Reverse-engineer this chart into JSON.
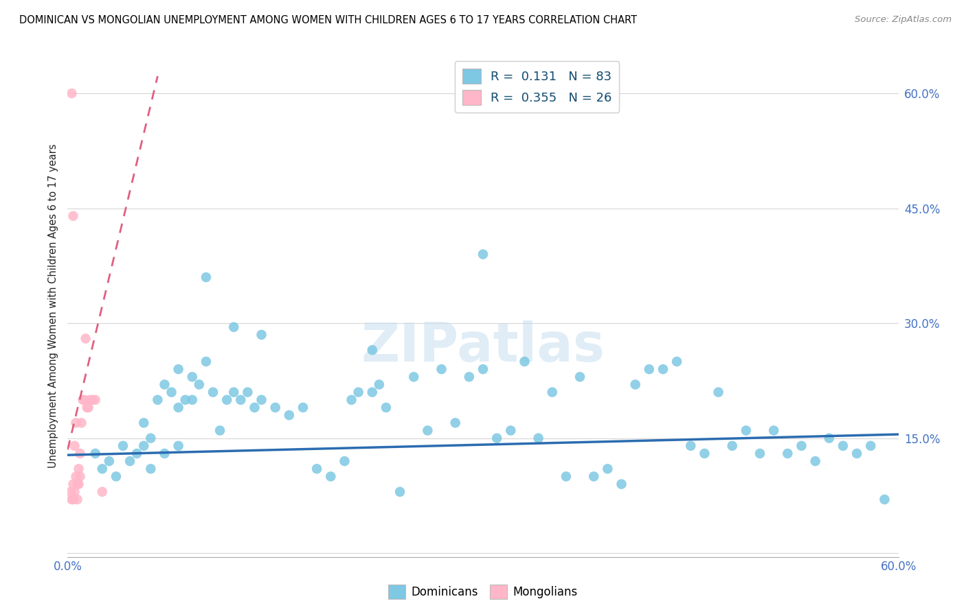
{
  "title": "DOMINICAN VS MONGOLIAN UNEMPLOYMENT AMONG WOMEN WITH CHILDREN AGES 6 TO 17 YEARS CORRELATION CHART",
  "source": "Source: ZipAtlas.com",
  "ylabel": "Unemployment Among Women with Children Ages 6 to 17 years",
  "xmin": 0.0,
  "xmax": 0.6,
  "ymin": -0.005,
  "ymax": 0.65,
  "legend_R_dom": "0.131",
  "legend_N_dom": "83",
  "legend_R_mon": "0.355",
  "legend_N_mon": "26",
  "dominican_color": "#7ec8e3",
  "mongolian_color": "#ffb6c8",
  "trend_dom_color": "#2b6cb0",
  "trend_mon_color": "#e06080",
  "dom_trend_start_y": 0.128,
  "dom_trend_end_y": 0.155,
  "mon_trend_intercept": 0.135,
  "mon_trend_slope": 7.5,
  "dom_x": [
    0.02,
    0.025,
    0.03,
    0.035,
    0.04,
    0.045,
    0.05,
    0.055,
    0.06,
    0.065,
    0.07,
    0.075,
    0.08,
    0.085,
    0.09,
    0.095,
    0.1,
    0.105,
    0.11,
    0.115,
    0.12,
    0.125,
    0.13,
    0.135,
    0.14,
    0.15,
    0.16,
    0.17,
    0.18,
    0.19,
    0.2,
    0.205,
    0.21,
    0.22,
    0.225,
    0.23,
    0.24,
    0.25,
    0.26,
    0.27,
    0.28,
    0.29,
    0.3,
    0.31,
    0.32,
    0.33,
    0.34,
    0.35,
    0.36,
    0.37,
    0.38,
    0.39,
    0.4,
    0.41,
    0.42,
    0.43,
    0.44,
    0.45,
    0.46,
    0.47,
    0.48,
    0.49,
    0.5,
    0.51,
    0.52,
    0.53,
    0.54,
    0.55,
    0.56,
    0.57,
    0.58,
    0.59,
    0.06,
    0.07,
    0.08,
    0.12,
    0.14,
    0.22,
    0.3,
    0.1,
    0.09,
    0.08,
    0.055
  ],
  "dom_y": [
    0.13,
    0.11,
    0.12,
    0.1,
    0.14,
    0.12,
    0.13,
    0.14,
    0.11,
    0.2,
    0.22,
    0.21,
    0.19,
    0.2,
    0.23,
    0.22,
    0.25,
    0.21,
    0.16,
    0.2,
    0.21,
    0.2,
    0.21,
    0.19,
    0.2,
    0.19,
    0.18,
    0.19,
    0.11,
    0.1,
    0.12,
    0.2,
    0.21,
    0.21,
    0.22,
    0.19,
    0.08,
    0.23,
    0.16,
    0.24,
    0.17,
    0.23,
    0.24,
    0.15,
    0.16,
    0.25,
    0.15,
    0.21,
    0.1,
    0.23,
    0.1,
    0.11,
    0.09,
    0.22,
    0.24,
    0.24,
    0.25,
    0.14,
    0.13,
    0.21,
    0.14,
    0.16,
    0.13,
    0.16,
    0.13,
    0.14,
    0.12,
    0.15,
    0.14,
    0.13,
    0.14,
    0.07,
    0.15,
    0.13,
    0.14,
    0.295,
    0.285,
    0.265,
    0.39,
    0.36,
    0.2,
    0.24,
    0.17
  ],
  "mon_x": [
    0.002,
    0.003,
    0.004,
    0.004,
    0.005,
    0.005,
    0.006,
    0.006,
    0.007,
    0.007,
    0.008,
    0.008,
    0.009,
    0.009,
    0.01,
    0.011,
    0.012,
    0.013,
    0.014,
    0.015,
    0.016,
    0.018,
    0.02,
    0.025,
    0.003,
    0.004
  ],
  "mon_y": [
    0.08,
    0.07,
    0.07,
    0.09,
    0.08,
    0.14,
    0.1,
    0.17,
    0.07,
    0.09,
    0.09,
    0.11,
    0.13,
    0.1,
    0.17,
    0.2,
    0.2,
    0.28,
    0.19,
    0.19,
    0.2,
    0.2,
    0.2,
    0.08,
    0.6,
    0.44
  ]
}
